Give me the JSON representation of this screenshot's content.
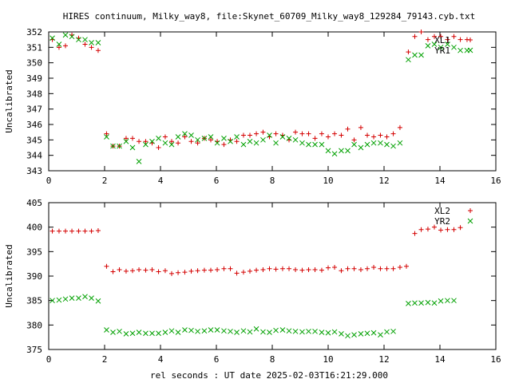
{
  "title": "HIRES continuum, Milky_way8, file:Skynet_60709_Milky_way8_129284_79143.cyb.txt",
  "xlabel": "rel seconds : UT date 2025-02-03T16:21:29.000",
  "chart_data": [
    {
      "type": "scatter",
      "ylabel": "Uncalibrated",
      "xlim": [
        0,
        16
      ],
      "ylim": [
        343,
        352
      ],
      "xticks": [
        0,
        2,
        4,
        6,
        8,
        10,
        12,
        14,
        16
      ],
      "yticks": [
        343,
        344,
        345,
        346,
        347,
        348,
        349,
        350,
        351,
        352
      ],
      "legend_position": "top-right",
      "series": [
        {
          "name": "XL1",
          "marker": "plus",
          "color": "#d40000",
          "points": [
            [
              0.13,
              351.5
            ],
            [
              0.37,
              351.0
            ],
            [
              0.6,
              351.1
            ],
            [
              0.83,
              351.8
            ],
            [
              1.07,
              351.6
            ],
            [
              1.3,
              351.2
            ],
            [
              1.53,
              351.0
            ],
            [
              1.77,
              350.8
            ],
            [
              2.07,
              345.4
            ],
            [
              2.3,
              344.6
            ],
            [
              2.53,
              344.6
            ],
            [
              2.77,
              345.1
            ],
            [
              3.0,
              345.1
            ],
            [
              3.23,
              344.9
            ],
            [
              3.47,
              344.9
            ],
            [
              3.7,
              344.8
            ],
            [
              3.93,
              344.5
            ],
            [
              4.17,
              345.2
            ],
            [
              4.4,
              344.9
            ],
            [
              4.63,
              344.8
            ],
            [
              4.87,
              345.2
            ],
            [
              5.1,
              344.9
            ],
            [
              5.33,
              344.8
            ],
            [
              5.57,
              345.1
            ],
            [
              5.8,
              345.0
            ],
            [
              6.03,
              344.9
            ],
            [
              6.27,
              344.7
            ],
            [
              6.5,
              345.0
            ],
            [
              6.73,
              344.9
            ],
            [
              6.97,
              345.3
            ],
            [
              7.2,
              345.3
            ],
            [
              7.43,
              345.4
            ],
            [
              7.67,
              345.5
            ],
            [
              7.9,
              345.2
            ],
            [
              8.13,
              345.4
            ],
            [
              8.37,
              345.3
            ],
            [
              8.6,
              345.0
            ],
            [
              8.83,
              345.5
            ],
            [
              9.07,
              345.4
            ],
            [
              9.3,
              345.4
            ],
            [
              9.53,
              345.1
            ],
            [
              9.77,
              345.4
            ],
            [
              10.0,
              345.2
            ],
            [
              10.23,
              345.4
            ],
            [
              10.47,
              345.3
            ],
            [
              10.7,
              345.7
            ],
            [
              10.93,
              345.0
            ],
            [
              11.17,
              345.8
            ],
            [
              11.4,
              345.3
            ],
            [
              11.63,
              345.2
            ],
            [
              11.87,
              345.3
            ],
            [
              12.1,
              345.2
            ],
            [
              12.33,
              345.4
            ],
            [
              12.57,
              345.8
            ],
            [
              12.87,
              350.7
            ],
            [
              13.1,
              351.7
            ],
            [
              13.33,
              352.0
            ],
            [
              13.57,
              351.5
            ],
            [
              13.8,
              351.7
            ],
            [
              14.03,
              351.7
            ],
            [
              14.27,
              351.5
            ],
            [
              14.5,
              351.7
            ],
            [
              14.73,
              351.5
            ],
            [
              14.97,
              351.5
            ]
          ]
        },
        {
          "name": "YR1",
          "marker": "x",
          "color": "#00a000",
          "points": [
            [
              0.13,
              351.6
            ],
            [
              0.37,
              351.2
            ],
            [
              0.6,
              351.8
            ],
            [
              0.83,
              351.7
            ],
            [
              1.07,
              351.5
            ],
            [
              1.3,
              351.5
            ],
            [
              1.53,
              351.3
            ],
            [
              1.77,
              351.3
            ],
            [
              2.07,
              345.2
            ],
            [
              2.3,
              344.6
            ],
            [
              2.53,
              344.6
            ],
            [
              2.77,
              344.9
            ],
            [
              3.0,
              344.5
            ],
            [
              3.23,
              343.6
            ],
            [
              3.47,
              344.7
            ],
            [
              3.7,
              344.9
            ],
            [
              3.93,
              345.1
            ],
            [
              4.17,
              344.8
            ],
            [
              4.4,
              344.7
            ],
            [
              4.63,
              345.2
            ],
            [
              4.87,
              345.4
            ],
            [
              5.1,
              345.3
            ],
            [
              5.33,
              345.0
            ],
            [
              5.57,
              345.1
            ],
            [
              5.8,
              345.2
            ],
            [
              6.03,
              344.8
            ],
            [
              6.27,
              345.1
            ],
            [
              6.5,
              344.9
            ],
            [
              6.73,
              345.2
            ],
            [
              6.97,
              344.7
            ],
            [
              7.2,
              344.9
            ],
            [
              7.43,
              344.8
            ],
            [
              7.67,
              345.0
            ],
            [
              7.9,
              345.3
            ],
            [
              8.13,
              344.8
            ],
            [
              8.37,
              345.2
            ],
            [
              8.6,
              345.1
            ],
            [
              8.83,
              345.0
            ],
            [
              9.07,
              344.8
            ],
            [
              9.3,
              344.7
            ],
            [
              9.53,
              344.7
            ],
            [
              9.77,
              344.7
            ],
            [
              10.0,
              344.3
            ],
            [
              10.23,
              344.1
            ],
            [
              10.47,
              344.3
            ],
            [
              10.7,
              344.3
            ],
            [
              10.93,
              344.7
            ],
            [
              11.17,
              344.5
            ],
            [
              11.4,
              344.7
            ],
            [
              11.63,
              344.8
            ],
            [
              11.87,
              344.8
            ],
            [
              12.1,
              344.7
            ],
            [
              12.33,
              344.6
            ],
            [
              12.57,
              344.8
            ],
            [
              12.87,
              350.2
            ],
            [
              13.1,
              350.5
            ],
            [
              13.33,
              350.5
            ],
            [
              13.57,
              351.1
            ],
            [
              13.8,
              351.2
            ],
            [
              14.03,
              351.0
            ],
            [
              14.27,
              351.2
            ],
            [
              14.5,
              351.0
            ],
            [
              14.73,
              350.8
            ],
            [
              14.97,
              350.8
            ]
          ]
        }
      ]
    },
    {
      "type": "scatter",
      "ylabel": "Uncalibrated",
      "xlim": [
        0,
        16
      ],
      "ylim": [
        375,
        405
      ],
      "xticks": [
        0,
        2,
        4,
        6,
        8,
        10,
        12,
        14,
        16
      ],
      "yticks": [
        375,
        380,
        385,
        390,
        395,
        400,
        405
      ],
      "legend_position": "top-right",
      "series": [
        {
          "name": "XL2",
          "marker": "plus",
          "color": "#d40000",
          "points": [
            [
              0.13,
              399.2
            ],
            [
              0.37,
              399.2
            ],
            [
              0.6,
              399.2
            ],
            [
              0.83,
              399.2
            ],
            [
              1.07,
              399.2
            ],
            [
              1.3,
              399.2
            ],
            [
              1.53,
              399.2
            ],
            [
              1.77,
              399.3
            ],
            [
              2.07,
              392.0
            ],
            [
              2.3,
              390.9
            ],
            [
              2.53,
              391.3
            ],
            [
              2.77,
              391.0
            ],
            [
              3.0,
              391.1
            ],
            [
              3.23,
              391.3
            ],
            [
              3.47,
              391.2
            ],
            [
              3.7,
              391.3
            ],
            [
              3.93,
              390.9
            ],
            [
              4.17,
              391.1
            ],
            [
              4.4,
              390.5
            ],
            [
              4.63,
              390.7
            ],
            [
              4.87,
              390.8
            ],
            [
              5.1,
              391.0
            ],
            [
              5.33,
              391.1
            ],
            [
              5.57,
              391.2
            ],
            [
              5.8,
              391.2
            ],
            [
              6.03,
              391.3
            ],
            [
              6.27,
              391.5
            ],
            [
              6.5,
              391.5
            ],
            [
              6.73,
              390.6
            ],
            [
              6.97,
              390.8
            ],
            [
              7.2,
              391.0
            ],
            [
              7.43,
              391.2
            ],
            [
              7.67,
              391.3
            ],
            [
              7.9,
              391.5
            ],
            [
              8.13,
              391.4
            ],
            [
              8.37,
              391.5
            ],
            [
              8.6,
              391.5
            ],
            [
              8.83,
              391.3
            ],
            [
              9.07,
              391.2
            ],
            [
              9.3,
              391.3
            ],
            [
              9.53,
              391.3
            ],
            [
              9.77,
              391.2
            ],
            [
              10.0,
              391.7
            ],
            [
              10.23,
              391.8
            ],
            [
              10.47,
              391.1
            ],
            [
              10.7,
              391.5
            ],
            [
              10.93,
              391.5
            ],
            [
              11.17,
              391.3
            ],
            [
              11.4,
              391.5
            ],
            [
              11.63,
              391.8
            ],
            [
              11.87,
              391.5
            ],
            [
              12.1,
              391.5
            ],
            [
              12.33,
              391.5
            ],
            [
              12.57,
              391.8
            ],
            [
              12.8,
              392.0
            ],
            [
              13.1,
              398.7
            ],
            [
              13.33,
              399.5
            ],
            [
              13.57,
              399.6
            ],
            [
              13.8,
              400.0
            ],
            [
              14.03,
              399.4
            ],
            [
              14.27,
              399.5
            ],
            [
              14.5,
              399.5
            ],
            [
              14.73,
              399.9
            ]
          ]
        },
        {
          "name": "YR2",
          "marker": "x",
          "color": "#00a000",
          "points": [
            [
              0.13,
              385.0
            ],
            [
              0.37,
              385.1
            ],
            [
              0.6,
              385.3
            ],
            [
              0.83,
              385.5
            ],
            [
              1.07,
              385.5
            ],
            [
              1.3,
              385.8
            ],
            [
              1.53,
              385.5
            ],
            [
              1.77,
              384.9
            ],
            [
              2.07,
              379.0
            ],
            [
              2.3,
              378.5
            ],
            [
              2.53,
              378.7
            ],
            [
              2.77,
              378.2
            ],
            [
              3.0,
              378.3
            ],
            [
              3.23,
              378.5
            ],
            [
              3.47,
              378.3
            ],
            [
              3.7,
              378.3
            ],
            [
              3.93,
              378.3
            ],
            [
              4.17,
              378.5
            ],
            [
              4.4,
              378.8
            ],
            [
              4.63,
              378.5
            ],
            [
              4.87,
              379.0
            ],
            [
              5.1,
              378.9
            ],
            [
              5.33,
              378.7
            ],
            [
              5.57,
              378.8
            ],
            [
              5.8,
              379.0
            ],
            [
              6.03,
              379.0
            ],
            [
              6.27,
              378.8
            ],
            [
              6.5,
              378.7
            ],
            [
              6.73,
              378.5
            ],
            [
              6.97,
              378.8
            ],
            [
              7.2,
              378.6
            ],
            [
              7.43,
              379.2
            ],
            [
              7.67,
              378.6
            ],
            [
              7.9,
              378.5
            ],
            [
              8.13,
              378.9
            ],
            [
              8.37,
              379.0
            ],
            [
              8.6,
              378.8
            ],
            [
              8.83,
              378.7
            ],
            [
              9.07,
              378.6
            ],
            [
              9.3,
              378.7
            ],
            [
              9.53,
              378.7
            ],
            [
              9.77,
              378.5
            ],
            [
              10.0,
              378.4
            ],
            [
              10.23,
              378.6
            ],
            [
              10.47,
              378.2
            ],
            [
              10.7,
              377.8
            ],
            [
              10.93,
              378.0
            ],
            [
              11.17,
              378.2
            ],
            [
              11.4,
              378.3
            ],
            [
              11.63,
              378.4
            ],
            [
              11.87,
              378.0
            ],
            [
              12.1,
              378.6
            ],
            [
              12.33,
              378.7
            ],
            [
              12.87,
              384.4
            ],
            [
              13.1,
              384.5
            ],
            [
              13.33,
              384.5
            ],
            [
              13.57,
              384.6
            ],
            [
              13.8,
              384.5
            ],
            [
              14.03,
              384.9
            ],
            [
              14.27,
              385.0
            ],
            [
              14.5,
              385.0
            ]
          ]
        }
      ]
    }
  ]
}
